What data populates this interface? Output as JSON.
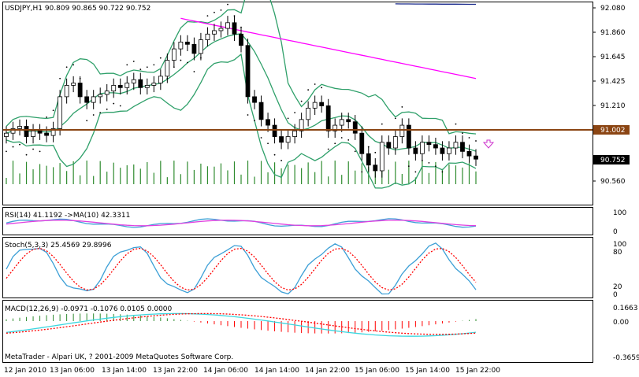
{
  "colors": {
    "background": "#ffffff",
    "frame": "#000000",
    "bollinger": "#2fa06a",
    "ma_long": "#ff00ff",
    "ma_longest": "#1a2a8c",
    "horizontal_line": "#8b4513",
    "volume": "#2e8b2e",
    "sar": "#000000",
    "rsi": "#3c9fd6",
    "rsi_ma": "#e040e0",
    "stoch_main": "#3c9fd6",
    "stoch_signal": "#ff0000",
    "macd_line": "#3cd7e0",
    "macd_signal": "#ff0000",
    "macd_hist_up": "#2e8b2e",
    "macd_hist_down": "#ff0000"
  },
  "main": {
    "title": "USDJPY,H1  90.809 90.865 90.722 90.752",
    "price_ticks": [
      "92.080",
      "91.860",
      "91.645",
      "91.425",
      "91.210",
      "91.002",
      "90.752",
      "90.560"
    ],
    "current_price": "90.752",
    "hline_price": "91.002",
    "arrow_icon": "down-arrow-icon"
  },
  "rsi": {
    "label": "RSI(14) 41.1192  ->MA(10) 42.3311",
    "ticks": [
      "100",
      "0"
    ]
  },
  "stoch": {
    "label": "Stoch(5,3,3) 25.4569 29.8996",
    "ticks": [
      "100",
      "80",
      "20",
      "0"
    ]
  },
  "macd": {
    "label": "MACD(12,26,9) -0.0971 -0.1076 0.0105 0.0000",
    "ticks": [
      "0.1663",
      "0.00",
      "-0.3659"
    ]
  },
  "copyright": "MetaTrader - Alpari UK, ? 2001-2009 MetaQuotes Software Corp.",
  "time_labels": [
    "12 Jan 2010",
    "13 Jan 06:00",
    "13 Jan 14:00",
    "13 Jan 22:00",
    "14 Jan 06:00",
    "14 Jan 14:00",
    "14 Jan 22:00",
    "15 Jan 06:00",
    "15 Jan 14:00",
    "15 Jan 22:00"
  ],
  "chart_data": {
    "type": "candlestick",
    "symbol": "USDJPY",
    "timeframe": "H1",
    "ylim": [
      90.56,
      92.08
    ],
    "last": {
      "open": 90.809,
      "high": 90.865,
      "low": 90.722,
      "close": 90.752
    },
    "close_series": [
      90.98,
      91.02,
      91.04,
      90.95,
      91.0,
      90.98,
      90.96,
      91.02,
      91.3,
      91.4,
      91.42,
      91.3,
      91.25,
      91.3,
      91.32,
      91.35,
      91.4,
      91.38,
      91.42,
      91.45,
      91.38,
      91.4,
      91.42,
      91.48,
      91.62,
      91.72,
      91.78,
      91.76,
      91.68,
      91.8,
      91.85,
      91.88,
      91.9,
      91.95,
      91.85,
      91.75,
      91.3,
      91.25,
      91.1,
      91.05,
      90.95,
      90.9,
      90.95,
      91.0,
      91.1,
      91.2,
      91.25,
      91.22,
      91.0,
      91.05,
      91.1,
      91.08,
      90.98,
      90.8,
      90.7,
      90.65,
      90.9,
      90.85,
      90.95,
      91.05,
      90.85,
      90.8,
      90.9,
      90.88,
      90.85,
      90.8,
      90.85,
      90.9,
      90.82,
      90.78,
      90.752
    ],
    "hline": 91.002
  }
}
